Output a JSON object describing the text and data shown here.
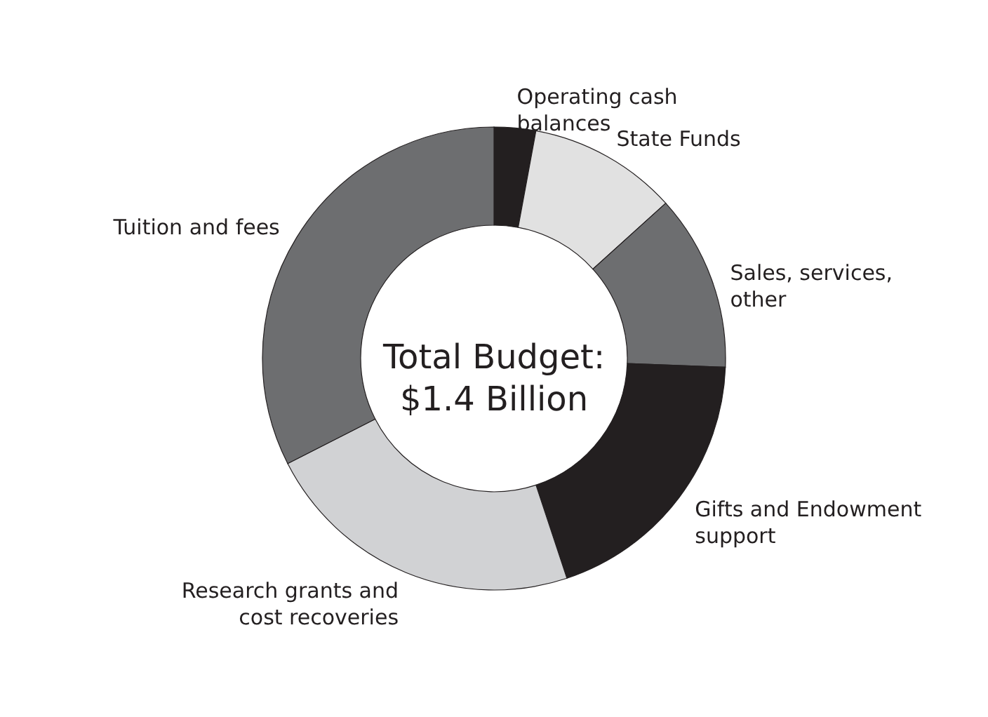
{
  "chart_data": {
    "type": "donut",
    "categories": [
      "Operating cash balances",
      "State Funds",
      "Sales, services, other",
      "Gifts and Endowment support",
      "Research grants and cost recoveries",
      "Tuition and fees"
    ],
    "values": [
      2.9,
      10.4,
      12.3,
      19.3,
      22.6,
      32.5
    ],
    "colors": [
      "#231f20",
      "#e1e1e1",
      "#6d6e70",
      "#231f20",
      "#d1d2d4",
      "#6d6e70"
    ],
    "annotations": [
      "Total Budget: $1.4 Billion"
    ]
  }
}
